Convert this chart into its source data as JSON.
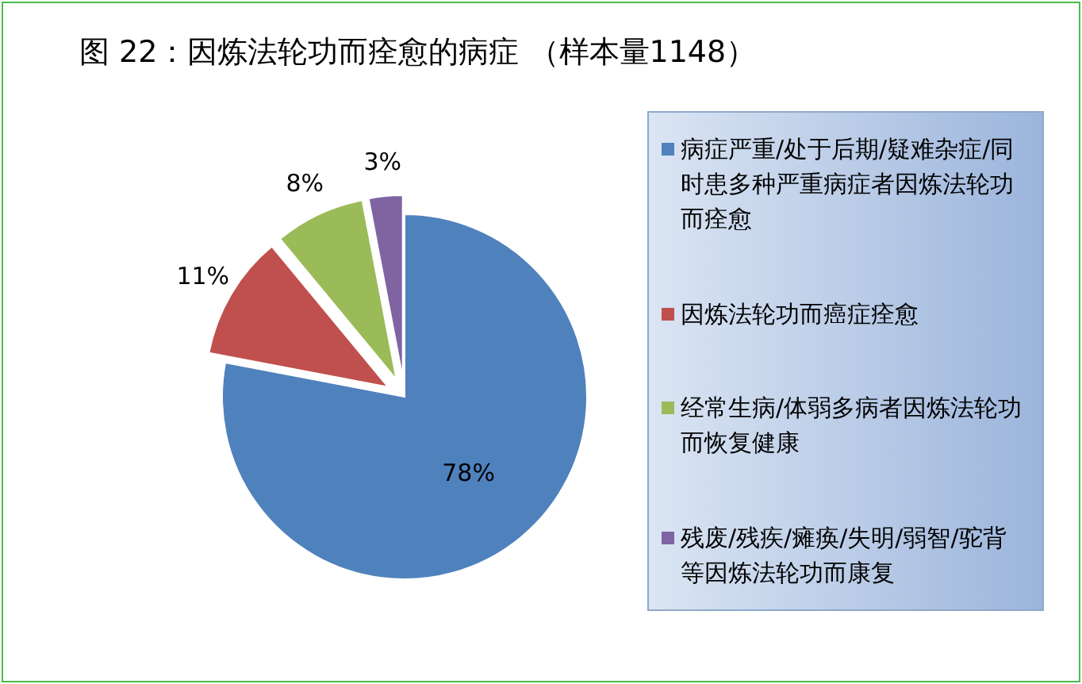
{
  "chart_data": {
    "type": "pie",
    "title": "图 22：因炼法轮功而痊愈的病症 （样本量1148）",
    "categories": [
      "病症严重/处于后期/疑难杂症/同时患多种严重病症者因炼法轮功而痊愈",
      "因炼法轮功而癌症痊愈",
      "经常生病/体弱多病者因炼法轮功而恢复健康",
      "残废/残疾/瘫痪/失明/弱智/驼背等因炼法轮功而康复"
    ],
    "values": [
      78,
      11,
      8,
      3
    ],
    "colors": [
      "#4f81bd",
      "#c0504d",
      "#9bbb59",
      "#8064a2"
    ],
    "value_labels": [
      "78%",
      "11%",
      "8%",
      "3%"
    ],
    "legend": "right"
  }
}
